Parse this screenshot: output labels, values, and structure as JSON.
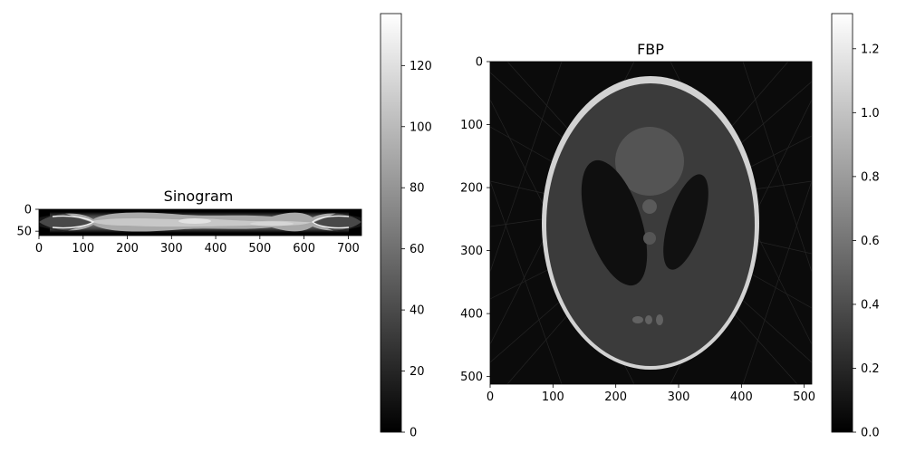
{
  "chart_data": [
    {
      "type": "heatmap",
      "title": "Sinogram",
      "colormap": "gray",
      "x_ticks": [
        "0",
        "100",
        "200",
        "300",
        "400",
        "500",
        "600",
        "700"
      ],
      "x_tick_values": [
        0,
        100,
        200,
        300,
        400,
        500,
        600,
        700
      ],
      "xlim": [
        0,
        730
      ],
      "y_ticks": [
        "0",
        "50"
      ],
      "y_tick_values": [
        0,
        50
      ],
      "ylim": [
        0,
        60
      ],
      "colorbar": {
        "range": [
          0,
          137
        ],
        "ticks": [
          "0",
          "20",
          "40",
          "60",
          "80",
          "100",
          "120"
        ],
        "tick_values": [
          0,
          20,
          40,
          60,
          80,
          100,
          120
        ]
      }
    },
    {
      "type": "heatmap",
      "title": "FBP",
      "colormap": "gray",
      "x_ticks": [
        "0",
        "100",
        "200",
        "300",
        "400",
        "500"
      ],
      "x_tick_values": [
        0,
        100,
        200,
        300,
        400,
        500
      ],
      "xlim": [
        0,
        512
      ],
      "y_ticks": [
        "0",
        "100",
        "200",
        "300",
        "400",
        "500"
      ],
      "y_tick_values": [
        0,
        100,
        200,
        300,
        400,
        500
      ],
      "ylim": [
        0,
        512
      ],
      "colorbar": {
        "range": [
          0,
          1.31
        ],
        "ticks": [
          "0.0",
          "0.2",
          "0.4",
          "0.6",
          "0.8",
          "1.0",
          "1.2"
        ],
        "tick_values": [
          0.0,
          0.2,
          0.4,
          0.6,
          0.8,
          1.0,
          1.2
        ]
      }
    }
  ]
}
